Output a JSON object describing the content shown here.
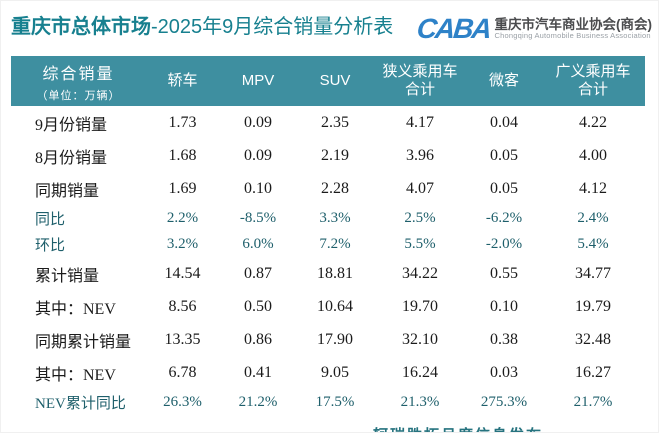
{
  "title": {
    "brand": "重庆市总体市场",
    "rest": "-2025年9月综合销量分析表"
  },
  "logo": {
    "acronym": "CABA",
    "name_cn": "重庆市汽车商业协会(商会)",
    "name_en": "Chongqing Automobile Business Association"
  },
  "table": {
    "header": {
      "metric_title": "综合销量",
      "metric_unit": "（单位：万辆）",
      "columns": [
        "轿车",
        "MPV",
        "SUV",
        "狭义乘用车合计",
        "微客",
        "广义乘用车合计"
      ]
    },
    "rows": [
      {
        "label": "9月份销量",
        "values": [
          "1.73",
          "0.09",
          "2.35",
          "4.17",
          "0.04",
          "4.22"
        ]
      },
      {
        "label": "8月份销量",
        "values": [
          "1.68",
          "0.09",
          "2.19",
          "3.96",
          "0.05",
          "4.00"
        ]
      },
      {
        "label": "同期销量",
        "values": [
          "1.69",
          "0.10",
          "2.28",
          "4.07",
          "0.05",
          "4.12"
        ]
      },
      {
        "label": "同比",
        "values": [
          "2.2%",
          "-8.5%",
          "3.3%",
          "2.5%",
          "-6.2%",
          "2.4%"
        ]
      },
      {
        "label": "环比",
        "values": [
          "3.2%",
          "6.0%",
          "7.2%",
          "5.5%",
          "-2.0%",
          "5.4%"
        ]
      },
      {
        "label": "累计销量",
        "values": [
          "14.54",
          "0.87",
          "18.81",
          "34.22",
          "0.55",
          "34.77"
        ]
      },
      {
        "label": "其中：NEV",
        "values": [
          "8.56",
          "0.50",
          "10.64",
          "19.70",
          "0.10",
          "19.79"
        ]
      },
      {
        "label": "同期累计销量",
        "values": [
          "13.35",
          "0.86",
          "17.90",
          "32.10",
          "0.38",
          "32.48"
        ]
      },
      {
        "label": "其中：NEV",
        "values": [
          "6.78",
          "0.41",
          "9.05",
          "16.24",
          "0.03",
          "16.27"
        ]
      },
      {
        "label": "NEV累计同比",
        "values": [
          "26.3%",
          "21.2%",
          "17.5%",
          "21.3%",
          "275.3%",
          "21.7%"
        ]
      }
    ]
  },
  "footer": {
    "text": "轲瑞胜拓月度信息发布"
  },
  "colors": {
    "header_bg": "#3E8FA0",
    "title_teal": "#17808F",
    "accent_dark_teal": "#1E5F6B",
    "footer_teal": "#26737F",
    "logo_blue": "#2E82C8"
  },
  "chart_data": {
    "type": "table",
    "title": "重庆市总体市场-2025年9月综合销量分析表",
    "unit": "万辆",
    "columns": [
      "轿车",
      "MPV",
      "SUV",
      "狭义乘用车合计",
      "微客",
      "广义乘用车合计"
    ],
    "rows": [
      {
        "label": "9月份销量",
        "values": [
          1.73,
          0.09,
          2.35,
          4.17,
          0.04,
          4.22
        ]
      },
      {
        "label": "8月份销量",
        "values": [
          1.68,
          0.09,
          2.19,
          3.96,
          0.05,
          4.0
        ]
      },
      {
        "label": "同期销量",
        "values": [
          1.69,
          0.1,
          2.28,
          4.07,
          0.05,
          4.12
        ]
      },
      {
        "label": "同比(%)",
        "values": [
          2.2,
          -8.5,
          3.3,
          2.5,
          -6.2,
          2.4
        ]
      },
      {
        "label": "环比(%)",
        "values": [
          3.2,
          6.0,
          7.2,
          5.5,
          -2.0,
          5.4
        ]
      },
      {
        "label": "累计销量",
        "values": [
          14.54,
          0.87,
          18.81,
          34.22,
          0.55,
          34.77
        ]
      },
      {
        "label": "其中：NEV",
        "values": [
          8.56,
          0.5,
          10.64,
          19.7,
          0.1,
          19.79
        ]
      },
      {
        "label": "同期累计销量",
        "values": [
          13.35,
          0.86,
          17.9,
          32.1,
          0.38,
          32.48
        ]
      },
      {
        "label": "其中：NEV",
        "values": [
          6.78,
          0.41,
          9.05,
          16.24,
          0.03,
          16.27
        ]
      },
      {
        "label": "NEV累计同比(%)",
        "values": [
          26.3,
          21.2,
          17.5,
          21.3,
          275.3,
          21.7
        ]
      }
    ]
  }
}
